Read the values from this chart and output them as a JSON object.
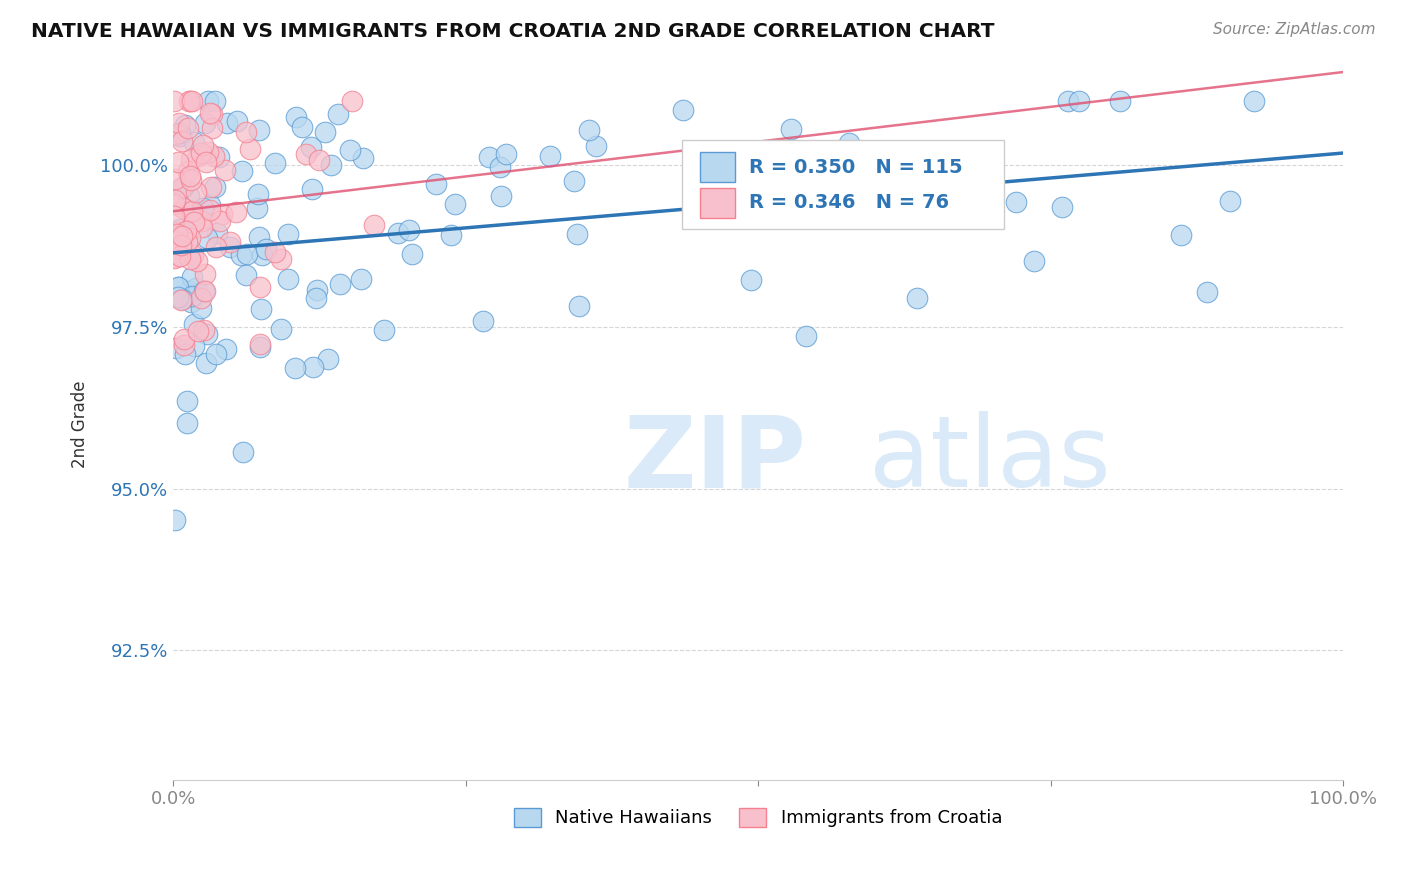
{
  "title": "NATIVE HAWAIIAN VS IMMIGRANTS FROM CROATIA 2ND GRADE CORRELATION CHART",
  "source_text": "Source: ZipAtlas.com",
  "ylabel": "2nd Grade",
  "xlim": [
    0,
    100
  ],
  "ylim": [
    90.5,
    101.5
  ],
  "yticks": [
    92.5,
    95.0,
    97.5,
    100.0
  ],
  "ytick_labels": [
    "92.5%",
    "95.0%",
    "97.5%",
    "100.0%"
  ],
  "xticks": [
    0,
    25,
    50,
    75,
    100
  ],
  "xtick_labels": [
    "0.0%",
    "",
    "",
    "",
    "100.0%"
  ],
  "blue_R": 0.35,
  "blue_N": 115,
  "pink_R": 0.346,
  "pink_N": 76,
  "blue_edge_color": "#5b9bd5",
  "pink_edge_color": "#f48090",
  "blue_fill_color": "#b8d8f0",
  "pink_fill_color": "#f8c0cc",
  "trend_line_color": "#2e75b6",
  "pink_trend_color": "#e05070",
  "watermark_color": "#daeaf8",
  "background_color": "#ffffff",
  "legend_label_blue": "Native Hawaiians",
  "legend_label_pink": "Immigrants from Croatia"
}
